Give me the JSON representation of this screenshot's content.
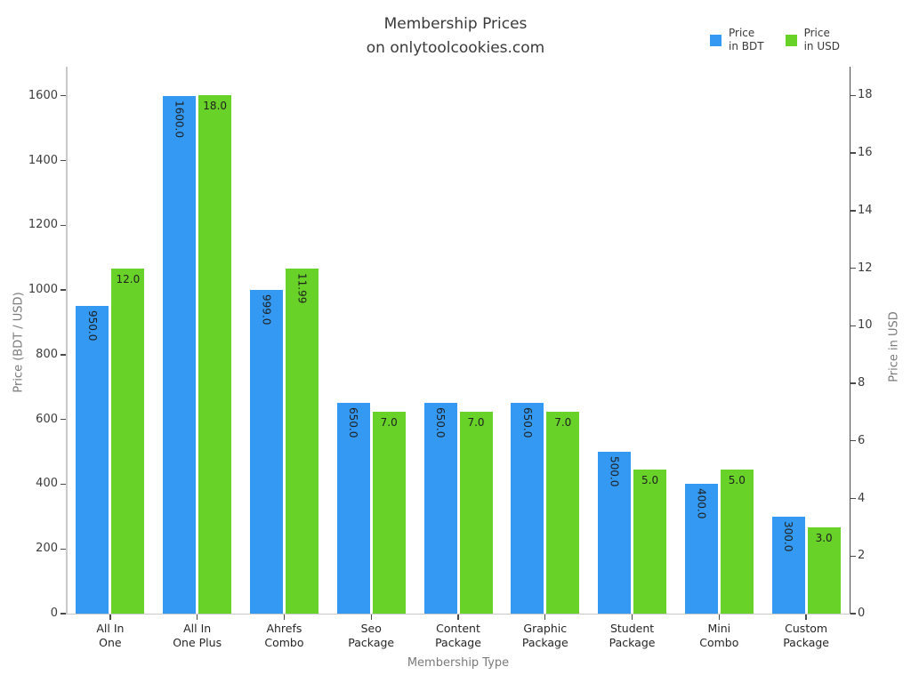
{
  "title": {
    "line1": "Membership Prices",
    "line2": "on onlytoolcookies.com"
  },
  "legend": [
    {
      "label_line1": "Price",
      "label_line2": "in BDT",
      "color": "#3399f3"
    },
    {
      "label_line1": "Price",
      "label_line2": "in USD",
      "color": "#68d228"
    }
  ],
  "axes": {
    "left": {
      "label": "Price (BDT / USD)",
      "ticks": [
        0,
        200,
        400,
        600,
        800,
        1000,
        1200,
        1400,
        1600
      ],
      "max": 1690
    },
    "right": {
      "label": "Price in USD",
      "ticks": [
        0,
        2,
        4,
        6,
        8,
        10,
        12,
        14,
        16,
        18
      ],
      "max": 19
    },
    "x": {
      "label": "Membership Type"
    }
  },
  "chart_data": {
    "type": "bar",
    "title": "Membership Prices on onlytoolcookies.com",
    "xlabel": "Membership Type",
    "ylabel_left": "Price (BDT / USD)",
    "ylabel_right": "Price in USD",
    "left_ylim": [
      0,
      1690
    ],
    "right_ylim": [
      0,
      19
    ],
    "grid": false,
    "legend_position": "upper right",
    "categories": [
      "All In\nOne",
      "All In\nOne Plus",
      "Ahrefs\nCombo",
      "Seo\nPackage",
      "Content\nPackage",
      "Graphic\nPackage",
      "Student\nPackage",
      "Mini\nCombo",
      "Custom\nPackage"
    ],
    "series": [
      {
        "name": "Price in BDT",
        "axis": "left",
        "color": "#3399f3",
        "values": [
          950,
          1600,
          999,
          650,
          650,
          650,
          500,
          400,
          300
        ],
        "bar_labels": [
          "950.0",
          "1600.0",
          "999.0",
          "650.0",
          "650.0",
          "650.0",
          "500.0",
          "400.0",
          "300.0"
        ],
        "label_rotated": [
          true,
          true,
          true,
          true,
          true,
          true,
          true,
          true,
          true
        ]
      },
      {
        "name": "Price in USD",
        "axis": "right",
        "color": "#68d228",
        "values": [
          12,
          18,
          11.99,
          7,
          7,
          7,
          5,
          5,
          3
        ],
        "bar_labels": [
          "12.0",
          "18.0",
          "11.99",
          "7.0",
          "7.0",
          "7.0",
          "5.0",
          "5.0",
          "3.0"
        ],
        "label_rotated": [
          false,
          false,
          true,
          false,
          false,
          false,
          false,
          false,
          false
        ]
      }
    ]
  }
}
